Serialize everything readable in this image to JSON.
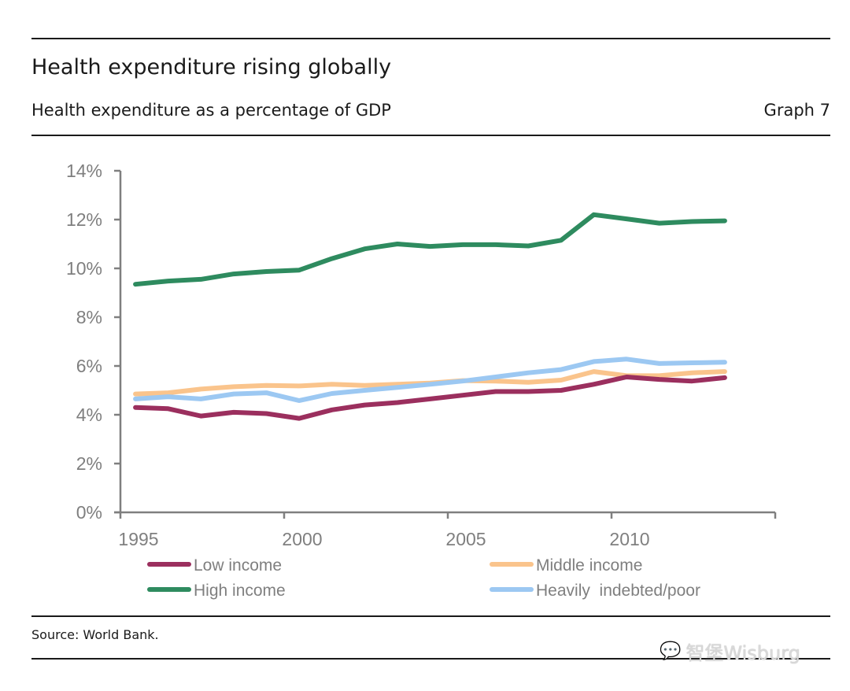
{
  "header": {
    "title": "Health expenditure rising globally",
    "subtitle": "Health expenditure as a percentage of GDP",
    "graph_label": "Graph 7"
  },
  "footer": {
    "source": "Source: World Bank.",
    "watermark": "智堡Wisburg",
    "watermark_icon": "wechat-icon"
  },
  "chart_data": {
    "type": "line",
    "title": "Health expenditure rising globally",
    "subtitle": "Health expenditure as a percentage of GDP",
    "xlabel": "",
    "ylabel": "",
    "x": [
      1995,
      1996,
      1997,
      1998,
      1999,
      2000,
      2001,
      2002,
      2003,
      2004,
      2005,
      2006,
      2007,
      2008,
      2009,
      2010,
      2011,
      2012,
      2013
    ],
    "xlim": [
      1995,
      2015
    ],
    "ylim": [
      0,
      14
    ],
    "x_ticks": [
      1995,
      2000,
      2005,
      2010,
      2015
    ],
    "x_tick_labels": [
      "1995",
      "2000",
      "2005",
      "2010",
      ""
    ],
    "y_ticks": [
      0,
      2,
      4,
      6,
      8,
      10,
      12,
      14
    ],
    "y_tick_labels": [
      "0%",
      "2%",
      "4%",
      "6%",
      "8%",
      "10%",
      "12%",
      "14%"
    ],
    "grid": false,
    "legend_position": "bottom",
    "series": [
      {
        "name": "Low income",
        "color": "#9B2F5E",
        "values": [
          4.3,
          4.25,
          3.95,
          4.1,
          4.05,
          3.85,
          4.2,
          4.4,
          4.5,
          4.65,
          4.8,
          4.95,
          4.95,
          5.0,
          5.25,
          5.55,
          5.45,
          5.38,
          5.52
        ]
      },
      {
        "name": "Middle income",
        "color": "#FAC48C",
        "values": [
          4.85,
          4.9,
          5.05,
          5.15,
          5.2,
          5.18,
          5.25,
          5.2,
          5.25,
          5.3,
          5.4,
          5.38,
          5.33,
          5.42,
          5.77,
          5.6,
          5.6,
          5.72,
          5.77
        ]
      },
      {
        "name": "High income",
        "color": "#2E8B5F",
        "values": [
          9.35,
          9.48,
          9.55,
          9.77,
          9.87,
          9.93,
          10.4,
          10.8,
          11.0,
          10.9,
          10.97,
          10.97,
          10.92,
          11.15,
          12.2,
          12.03,
          11.85,
          11.92,
          11.95
        ]
      },
      {
        "name": "Heavily  indebted/poor",
        "color": "#9CC8F2",
        "values": [
          4.65,
          4.74,
          4.65,
          4.85,
          4.9,
          4.58,
          4.87,
          5.0,
          5.12,
          5.25,
          5.38,
          5.55,
          5.72,
          5.85,
          6.18,
          6.28,
          6.1,
          6.13,
          6.15
        ]
      }
    ],
    "axis_color": "#7f7f7f"
  }
}
